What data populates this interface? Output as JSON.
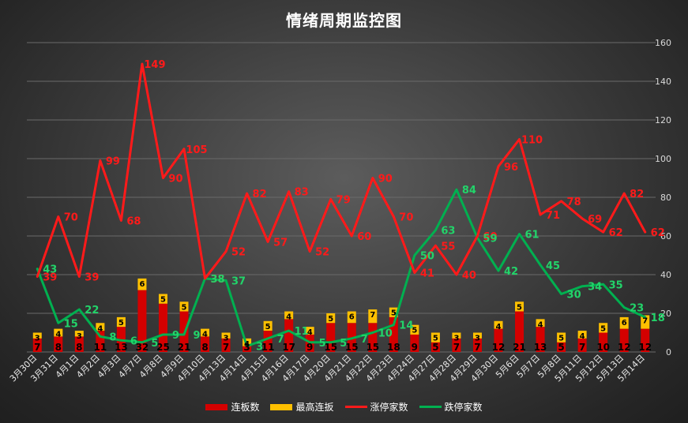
{
  "chart_data": {
    "type": "bar-line-combo",
    "title": "情绪周期监控图",
    "categories": [
      "3月30日",
      "3月31日",
      "4月1日",
      "4月2日",
      "4月3日",
      "4月7日",
      "4月8日",
      "4月9日",
      "4月10日",
      "4月13日",
      "4月14日",
      "4月15日",
      "4月16日",
      "4月17日",
      "4月20日",
      "4月21日",
      "4月22日",
      "4月23日",
      "4月24日",
      "4月27日",
      "4月28日",
      "4月29日",
      "4月30日",
      "5月6日",
      "5月7日",
      "5月8日",
      "5月11日",
      "5月12日",
      "5月13日",
      "5月14日"
    ],
    "y_axis": {
      "min": 0,
      "max": 160,
      "step": 20,
      "position": "right",
      "grid": true
    },
    "series": [
      {
        "name": "连板数",
        "type": "bar",
        "color": "#d40000",
        "values": [
          7,
          8,
          8,
          11,
          13,
          32,
          25,
          21,
          8,
          7,
          3,
          11,
          17,
          9,
          15,
          15,
          15,
          18,
          9,
          5,
          7,
          7,
          12,
          21,
          13,
          5,
          7,
          10,
          12,
          12
        ]
      },
      {
        "name": "最高连扳",
        "type": "bar",
        "color": "#ffc000",
        "values": [
          3,
          4,
          3,
          4,
          5,
          6,
          5,
          5,
          4,
          3,
          4,
          5,
          4,
          4,
          5,
          6,
          7,
          5,
          5,
          5,
          3,
          3,
          4,
          5,
          4,
          5,
          4,
          5,
          6,
          7
        ]
      },
      {
        "name": "涨停家数",
        "type": "line",
        "color": "#ff1a1a",
        "values": [
          39,
          70,
          39,
          99,
          68,
          149,
          90,
          105,
          38,
          52,
          82,
          57,
          83,
          52,
          79,
          60,
          90,
          70,
          41,
          55,
          40,
          60,
          96,
          110,
          71,
          78,
          69,
          62,
          82,
          62
        ]
      },
      {
        "name": "跌停家数",
        "type": "line",
        "color": "#00b050",
        "values": [
          43,
          15,
          22,
          8,
          6,
          5,
          9,
          9,
          38,
          37,
          3,
          7,
          11,
          5,
          5,
          7,
          10,
          14,
          50,
          63,
          84,
          59,
          42,
          61,
          45,
          30,
          34,
          35,
          23,
          18
        ]
      }
    ],
    "legend_position": "bottom"
  }
}
